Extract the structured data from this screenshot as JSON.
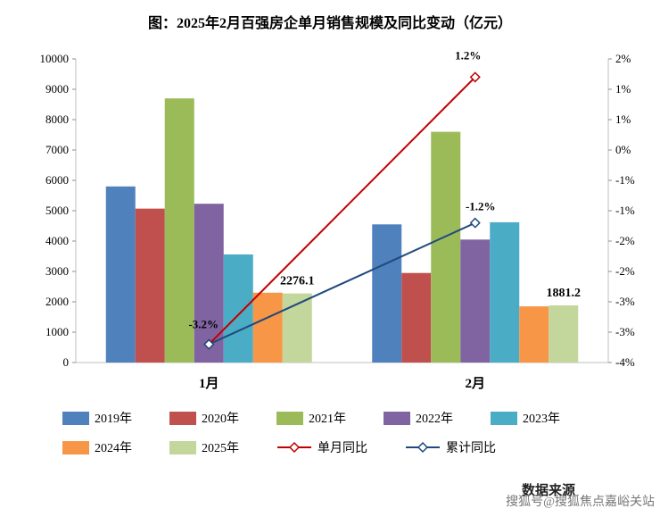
{
  "title": "图：2025年2月百强房企单月销售规模及同比变动（亿元）",
  "footer": {
    "source": "数据来源",
    "watermark": "搜狐号@搜狐焦点嘉峪关站"
  },
  "chart_data": {
    "type": "bar+line",
    "title": "图：2025年2月百强房企单月销售规模及同比变动（亿元）",
    "categories": [
      "1月",
      "2月"
    ],
    "bar_series": [
      {
        "name": "2019年",
        "color": "#4F81BD",
        "values": [
          5800,
          4550
        ]
      },
      {
        "name": "2020年",
        "color": "#C0504D",
        "values": [
          5070,
          2950
        ]
      },
      {
        "name": "2021年",
        "color": "#9BBB59",
        "values": [
          8700,
          7600
        ]
      },
      {
        "name": "2022年",
        "color": "#8064A2",
        "values": [
          5230,
          4050
        ]
      },
      {
        "name": "2023年",
        "color": "#4BACC6",
        "values": [
          3560,
          4620
        ]
      },
      {
        "name": "2024年",
        "color": "#F79646",
        "values": [
          2300,
          1850
        ]
      },
      {
        "name": "2025年",
        "color": "#C3D69B",
        "values": [
          2276.1,
          1881.2
        ]
      }
    ],
    "line_series": [
      {
        "name": "单月同比",
        "color": "#C00000",
        "values": [
          -3.2,
          1.2
        ],
        "labels": [
          "-3.2%",
          "1.2%"
        ]
      },
      {
        "name": "累计同比",
        "color": "#1F497D",
        "values": [
          -3.2,
          -1.2
        ],
        "labels": [
          "",
          "-1.2%"
        ]
      }
    ],
    "bar_labels": [
      {
        "category": 0,
        "text": "2276.1"
      },
      {
        "category": 1,
        "text": "1881.2"
      }
    ],
    "left_axis": {
      "min": 0,
      "max": 10000,
      "step": 1000,
      "ticks": [
        "0",
        "1000",
        "2000",
        "3000",
        "4000",
        "5000",
        "6000",
        "7000",
        "8000",
        "9000",
        "10000"
      ]
    },
    "right_axis": {
      "min": -3.5,
      "max": 1.5,
      "ticks": [
        "2%",
        "1%",
        "1%",
        "0%",
        "-1%",
        "-1%",
        "-2%",
        "-2%",
        "-3%",
        "-3%",
        "-4%"
      ]
    },
    "layout": {
      "grid": false,
      "legend_position": "bottom"
    }
  }
}
